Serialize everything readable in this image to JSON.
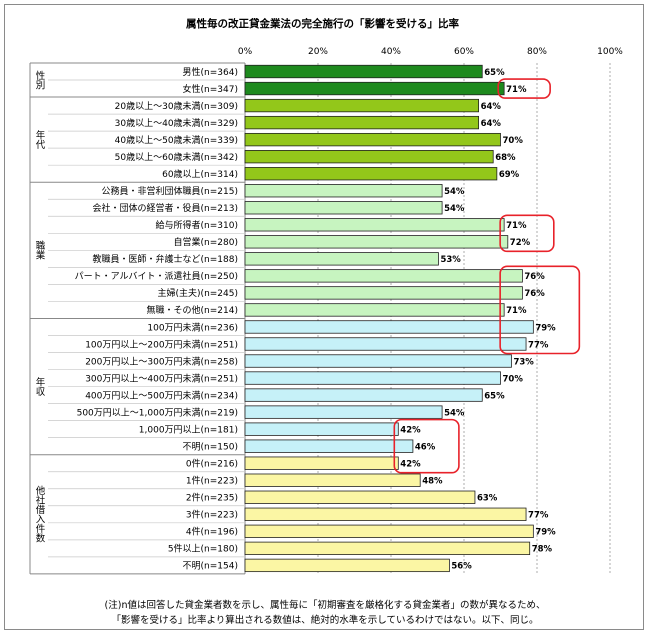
{
  "chart_data": {
    "type": "bar",
    "orientation": "horizontal",
    "title": "属性毎の改正貸金業法の完全施行の「影響を受ける」比率",
    "x_ticks": [
      "0%",
      "20%",
      "40%",
      "60%",
      "80%",
      "100%"
    ],
    "xlim": [
      0,
      100
    ],
    "value_suffix": "%",
    "grid": "vertical dashed",
    "groups": [
      {
        "label": "性別",
        "fill": "#1e8a1e",
        "rows": [
          {
            "label": "男性(n=364)",
            "value": 65
          },
          {
            "label": "女性(n=347)",
            "value": 71
          }
        ]
      },
      {
        "label": "年代",
        "fill": "#93c71a",
        "rows": [
          {
            "label": "20歳以上～30歳未満(n=309)",
            "value": 64
          },
          {
            "label": "30歳以上～40歳未満(n=329)",
            "value": 64
          },
          {
            "label": "40歳以上～50歳未満(n=339)",
            "value": 70
          },
          {
            "label": "50歳以上～60歳未満(n=342)",
            "value": 68
          },
          {
            "label": "60歳以上(n=314)",
            "value": 69
          }
        ]
      },
      {
        "label": "職業",
        "fill": "#c7f4c0",
        "rows": [
          {
            "label": "公務員・非営利団体職員(n=215)",
            "value": 54
          },
          {
            "label": "会社・団体の経営者・役員(n=213)",
            "value": 54
          },
          {
            "label": "給与所得者(n=310)",
            "value": 71
          },
          {
            "label": "自営業(n=280)",
            "value": 72
          },
          {
            "label": "教職員・医師・弁護士など(n=188)",
            "value": 53
          },
          {
            "label": "パート・アルバイト・派遣社員(n=250)",
            "value": 76
          },
          {
            "label": "主婦(主夫)(n=245)",
            "value": 76
          },
          {
            "label": "無職・その他(n=214)",
            "value": 71
          }
        ]
      },
      {
        "label": "年収",
        "fill": "#c6f1f8",
        "rows": [
          {
            "label": "100万円未満(n=236)",
            "value": 79
          },
          {
            "label": "100万円以上～200万円未満(n=251)",
            "value": 77
          },
          {
            "label": "200万円以上～300万円未満(n=258)",
            "value": 73
          },
          {
            "label": "300万円以上～400万円未満(n=251)",
            "value": 70
          },
          {
            "label": "400万円以上～500万円未満(n=234)",
            "value": 65
          },
          {
            "label": "500万円以上～1,000万円未満(n=219)",
            "value": 54
          },
          {
            "label": "1,000万円以上(n=181)",
            "value": 42
          },
          {
            "label": "不明(n=150)",
            "value": 46
          }
        ]
      },
      {
        "label": "他社借入件数",
        "fill": "#fbf6a4",
        "rows": [
          {
            "label": "0件(n=216)",
            "value": 42
          },
          {
            "label": "1件(n=223)",
            "value": 48
          },
          {
            "label": "2件(n=235)",
            "value": 63
          },
          {
            "label": "3件(n=223)",
            "value": 77
          },
          {
            "label": "4件(n=196)",
            "value": 79
          },
          {
            "label": "5件以上(n=180)",
            "value": 78
          },
          {
            "label": "不明(n=154)",
            "value": 56
          }
        ]
      }
    ],
    "highlights": [
      [
        1,
        1
      ],
      [
        9,
        10
      ],
      [
        12,
        16
      ],
      [
        21,
        23
      ]
    ],
    "highlight_color": "#e8222a"
  },
  "footnote": {
    "line1": "(注)n値は回答した貸金業者数を示し、属性毎に「初期審査を厳格化する貸金業者」の数が異なるため、",
    "line2": "「影響を受ける」比率より算出される数値は、絶対的水準を示しているわけではない。以下、同じ。"
  }
}
